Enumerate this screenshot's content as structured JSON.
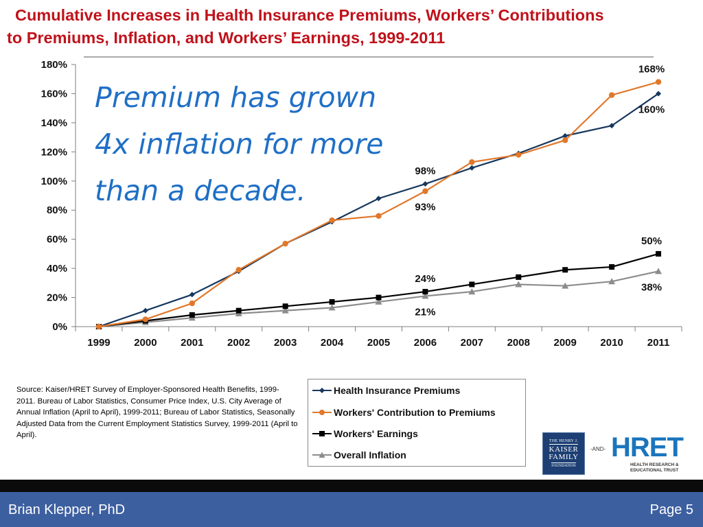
{
  "title": {
    "line1": "Cumulative Increases in Health Insurance Premiums, Workers’ Contributions",
    "line2": "to Premiums, Inflation, and Workers’ Earnings, 1999-2011"
  },
  "callout": {
    "line1": "Premium has grown",
    "line2": "4x inflation for more",
    "line3": "than a decade."
  },
  "source_text": "Source:  Kaiser/HRET Survey of Employer-Sponsored Health Benefits, 1999-2011.  Bureau of Labor Statistics, Consumer Price Index, U.S. City Average of Annual Inflation (April to April), 1999-2011; Bureau of Labor Statistics, Seasonally Adjusted Data from the Current Employment Statistics Survey, 1999-2011 (April to April).",
  "logos": {
    "kff_line1": "THE HENRY J.",
    "kff_line2": "KAISER",
    "kff_line3": "FAMILY",
    "kff_line4": "FOUNDATION",
    "and": "-AND-",
    "hret": "HRET",
    "hret_sub1": "HEALTH RESEARCH &",
    "hret_sub2": "EDUCATIONAL TRUST"
  },
  "footer": {
    "author": "Brian Klepper, PhD",
    "page": "Page 5"
  },
  "chart_data": {
    "type": "line",
    "title": "Cumulative Increases in Health Insurance Premiums, Workers’ Contributions to Premiums, Inflation, and Workers’ Earnings, 1999-2011",
    "x": [
      "1999",
      "2000",
      "2001",
      "2002",
      "2003",
      "2004",
      "2005",
      "2006",
      "2007",
      "2008",
      "2009",
      "2010",
      "2011"
    ],
    "ylim": [
      0,
      180
    ],
    "yticks": [
      0,
      20,
      40,
      60,
      80,
      100,
      120,
      140,
      160,
      180
    ],
    "ytick_labels": [
      "0%",
      "20%",
      "40%",
      "60%",
      "80%",
      "100%",
      "120%",
      "140%",
      "160%",
      "180%"
    ],
    "grid": false,
    "legend_position": "bottom",
    "series": [
      {
        "name": "Health Insurance Premiums",
        "color": "#17375e",
        "marker": "diamond",
        "values": [
          0,
          11,
          22,
          38,
          57,
          72,
          88,
          98,
          109,
          119,
          131,
          138,
          160
        ]
      },
      {
        "name": "Workers' Contribution to Premiums",
        "color": "#e0782b",
        "marker": "circle",
        "values": [
          0,
          5,
          16,
          39,
          57,
          73,
          76,
          93,
          113,
          118,
          128,
          159,
          168
        ]
      },
      {
        "name": "Workers' Earnings",
        "color": "#000000",
        "marker": "square",
        "values": [
          0,
          4,
          8,
          11,
          14,
          17,
          20,
          24,
          29,
          34,
          39,
          41,
          50
        ]
      },
      {
        "name": "Overall Inflation",
        "color": "#8c8c8c",
        "marker": "triangle",
        "values": [
          0,
          3,
          6,
          9,
          11,
          13,
          17,
          21,
          24,
          29,
          28,
          31,
          38
        ]
      }
    ],
    "annotations": [
      {
        "text": "168%",
        "x": "2011",
        "series": 1,
        "pos": "above"
      },
      {
        "text": "160%",
        "x": "2011",
        "series": 0,
        "pos": "below"
      },
      {
        "text": "98%",
        "x": "2006",
        "series": 0,
        "pos": "above"
      },
      {
        "text": "93%",
        "x": "2006",
        "series": 1,
        "pos": "below"
      },
      {
        "text": "50%",
        "x": "2011",
        "series": 2,
        "pos": "above"
      },
      {
        "text": "38%",
        "x": "2011",
        "series": 3,
        "pos": "below"
      },
      {
        "text": "24%",
        "x": "2006",
        "series": 2,
        "pos": "above"
      },
      {
        "text": "21%",
        "x": "2006",
        "series": 3,
        "pos": "below"
      }
    ]
  }
}
